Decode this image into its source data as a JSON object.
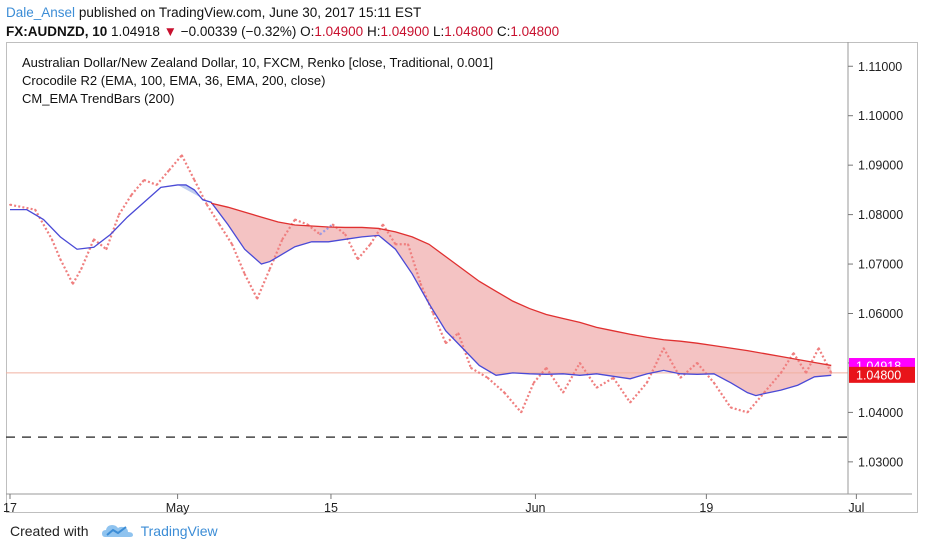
{
  "header": {
    "author": "Dale_Ansel",
    "published": "published on TradingView.com, June 30, 2017 15:11 EST",
    "symbol": "FX:AUDNZD, 10",
    "last": "1.04918",
    "arrow": "▼",
    "change": "−0.00339 (−0.32%)",
    "o_label": "O:",
    "o_value": "1.04900",
    "h_label": "H:",
    "h_value": "1.04900",
    "l_label": "L:",
    "l_value": "1.04800",
    "c_label": "C:",
    "c_value": "1.04800"
  },
  "legend": {
    "line1": "Australian Dollar/New Zealand Dollar, 10, FXCM, Renko [close, Traditional, 0.001]",
    "line2": "Crocodile R2 (EMA, 100, EMA, 36, EMA, 200, close)",
    "line3": "CM_EMA TrendBars (200)"
  },
  "footer": {
    "created_with": "Created with",
    "brand": "TradingView"
  },
  "colors": {
    "renko": "#ef7f7f",
    "renko_up": "#9a9ae6",
    "fast_ema": "#4a4ad6",
    "slow_ema": "#e03030",
    "fill": "#f2b8b8",
    "fill_alt": "#b8c8ee",
    "last_price_tag": "#ff00ff",
    "close_tag": "#e8141a"
  },
  "chart_data": {
    "type": "line",
    "x_ticks": [
      "17",
      "May",
      "15",
      "Jun",
      "19",
      "Jul"
    ],
    "y_ticks": [
      "1.11000",
      "1.10000",
      "1.09000",
      "1.08000",
      "1.07000",
      "1.06000",
      "1.05000",
      "1.04000",
      "1.03000"
    ],
    "ylim": [
      1.0235,
      1.1145
    ],
    "x_range": [
      0,
      100
    ],
    "x_tick_positions": [
      0,
      20,
      38.3,
      62.7,
      83.1,
      101
    ],
    "price_tags": [
      {
        "label": "1.04918",
        "value": 1.04918,
        "color": "#ff00ff"
      },
      {
        "label": "1.04800",
        "value": 1.048,
        "color": "#e8141a"
      }
    ],
    "horizontal_lines": [
      {
        "value": 1.048,
        "style": "solid",
        "color": "#f0b0a0"
      },
      {
        "value": 1.035,
        "style": "dashed",
        "color": "#444444"
      }
    ],
    "renko_close": {
      "x": [
        0,
        3,
        5,
        6,
        7.5,
        8.5,
        10,
        11.5,
        13,
        14.5,
        16,
        17.5,
        19,
        20.5,
        22,
        23.5,
        25,
        26.5,
        28,
        29.5,
        31,
        32.5,
        34,
        35.5,
        37,
        38.5,
        40,
        41.5,
        43,
        44.5,
        46,
        47.5,
        49,
        50.5,
        52,
        53.5,
        55,
        57,
        59,
        61,
        62.5,
        64,
        66,
        68,
        70,
        72,
        74,
        76,
        78,
        80,
        82,
        84,
        86,
        88,
        90,
        92,
        93.5,
        95,
        96.5,
        98
      ],
      "values": [
        1.082,
        1.081,
        1.075,
        1.071,
        1.066,
        1.069,
        1.075,
        1.073,
        1.08,
        1.084,
        1.087,
        1.086,
        1.089,
        1.092,
        1.087,
        1.082,
        1.078,
        1.074,
        1.068,
        1.063,
        1.069,
        1.075,
        1.079,
        1.078,
        1.076,
        1.078,
        1.076,
        1.071,
        1.074,
        1.078,
        1.074,
        1.074,
        1.066,
        1.06,
        1.054,
        1.056,
        1.049,
        1.047,
        1.044,
        1.04,
        1.046,
        1.049,
        1.044,
        1.05,
        1.045,
        1.047,
        1.042,
        1.046,
        1.053,
        1.047,
        1.05,
        1.046,
        1.041,
        1.04,
        1.044,
        1.048,
        1.052,
        1.048,
        1.053,
        1.048
      ]
    },
    "series": [
      {
        "name": "Crocodile R2 fast",
        "color": "#4a4ad6",
        "x": [
          0,
          2,
          4,
          6,
          8,
          10,
          12,
          14,
          16,
          18,
          20,
          21,
          22,
          23,
          24,
          26,
          28,
          30,
          31,
          32,
          34,
          36,
          38,
          40,
          42,
          44,
          46,
          48,
          50,
          52,
          54,
          56,
          58,
          60,
          62,
          64,
          66,
          68,
          70,
          72,
          74,
          76,
          78,
          80,
          82,
          84,
          86,
          88,
          89,
          90,
          92,
          94,
          96,
          98
        ],
        "values": [
          1.081,
          1.081,
          1.079,
          1.0755,
          1.073,
          1.0734,
          1.076,
          1.0795,
          1.0825,
          1.0855,
          1.086,
          1.086,
          1.085,
          1.083,
          1.0825,
          1.078,
          1.073,
          1.07,
          1.0705,
          1.0715,
          1.0735,
          1.0745,
          1.0745,
          1.075,
          1.0755,
          1.0758,
          1.073,
          1.068,
          1.062,
          1.0565,
          1.053,
          1.0495,
          1.0475,
          1.048,
          1.0478,
          1.0477,
          1.0478,
          1.0475,
          1.0478,
          1.0473,
          1.0468,
          1.0478,
          1.0485,
          1.0478,
          1.0477,
          1.0478,
          1.046,
          1.044,
          1.0434,
          1.0438,
          1.0445,
          1.0455,
          1.0472,
          1.0475
        ]
      },
      {
        "name": "Crocodile R2 slow",
        "color": "#e03030",
        "x": [
          24,
          26,
          28,
          30,
          32,
          34,
          36,
          38,
          40,
          42,
          44,
          46,
          48,
          50,
          52,
          54,
          56,
          58,
          60,
          62,
          64,
          66,
          68,
          70,
          72,
          74,
          76,
          78,
          80,
          82,
          84,
          86,
          88,
          90,
          92,
          94,
          96,
          98
        ],
        "values": [
          1.0823,
          1.0815,
          1.0805,
          1.0795,
          1.0785,
          1.0779,
          1.0777,
          1.0775,
          1.0774,
          1.0774,
          1.0772,
          1.0765,
          1.0755,
          1.074,
          1.0715,
          1.069,
          1.0665,
          1.0645,
          1.0625,
          1.061,
          1.0598,
          1.059,
          1.0582,
          1.0572,
          1.0565,
          1.0558,
          1.0552,
          1.0547,
          1.0544,
          1.054,
          1.0535,
          1.053,
          1.0525,
          1.0519,
          1.0513,
          1.0507,
          1.0501,
          1.0495
        ]
      }
    ]
  }
}
